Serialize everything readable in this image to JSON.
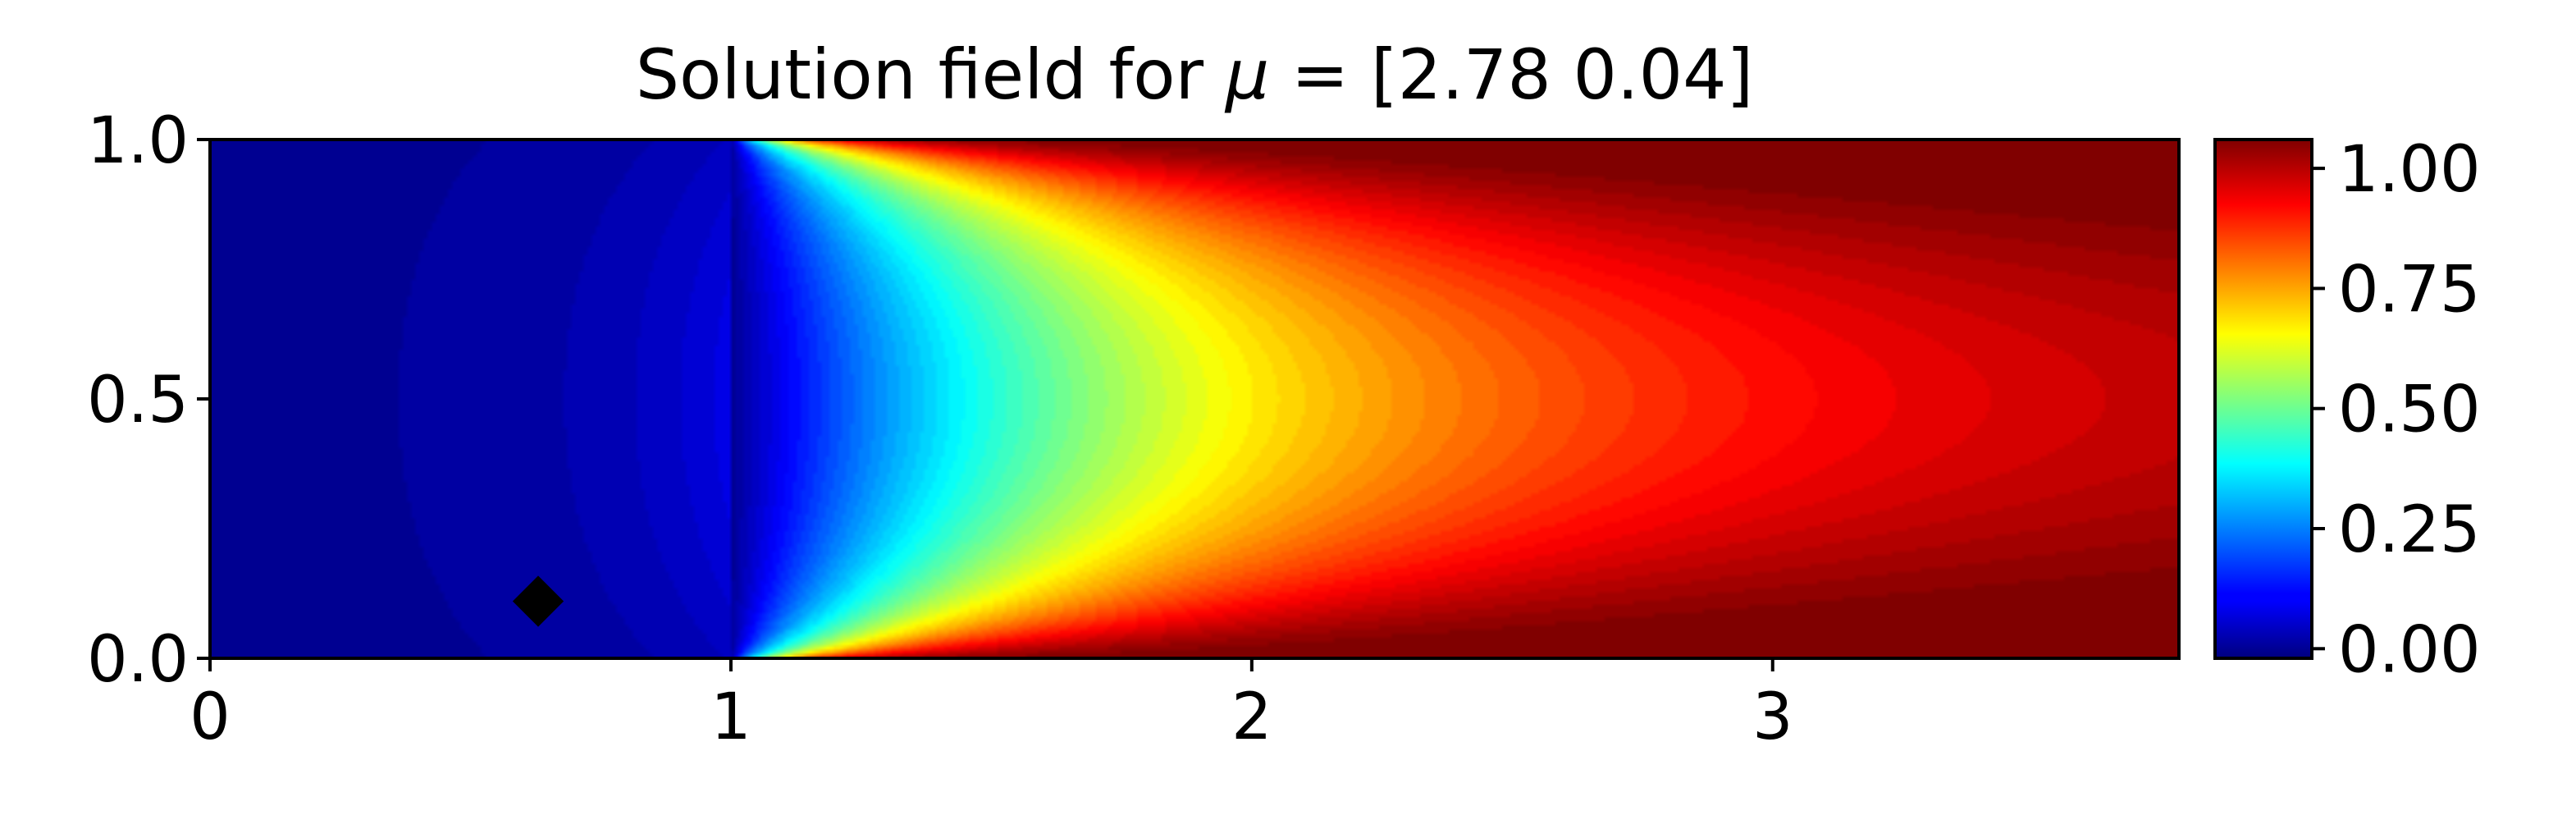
{
  "chart_data": {
    "type": "heatmap",
    "title": "Solution field for μ = [2.78 0.04]",
    "title_prefix": "Solution field for ",
    "title_symbol": "μ",
    "title_suffix": " = [2.78 0.04]",
    "xlabel": "",
    "ylabel": "",
    "xlim": [
      0,
      3.78
    ],
    "ylim": [
      0,
      1.0
    ],
    "x_ticks": [
      0,
      1,
      2,
      3
    ],
    "x_tick_labels": [
      "0",
      "1",
      "2",
      "3"
    ],
    "y_ticks": [
      0.0,
      0.5,
      1.0
    ],
    "y_tick_labels": [
      "0.0",
      "0.5",
      "1.0"
    ],
    "colormap": "jet",
    "colorbar": {
      "min": -0.02,
      "max": 1.06,
      "ticks": [
        0.0,
        0.25,
        0.5,
        0.75,
        1.0
      ],
      "tick_labels": [
        "0.00",
        "0.25",
        "0.50",
        "0.75",
        "1.00"
      ]
    },
    "field_description": "value near 0 for x < 1; transitions from 0 at x=1 toward about 1.05 at x=3.78, with parabolic profile across y (faster rise near walls y=0 and y=1)",
    "marker": {
      "shape": "diamond",
      "color": "#000000",
      "x": 0.63,
      "y": 0.11
    },
    "grid": false
  }
}
